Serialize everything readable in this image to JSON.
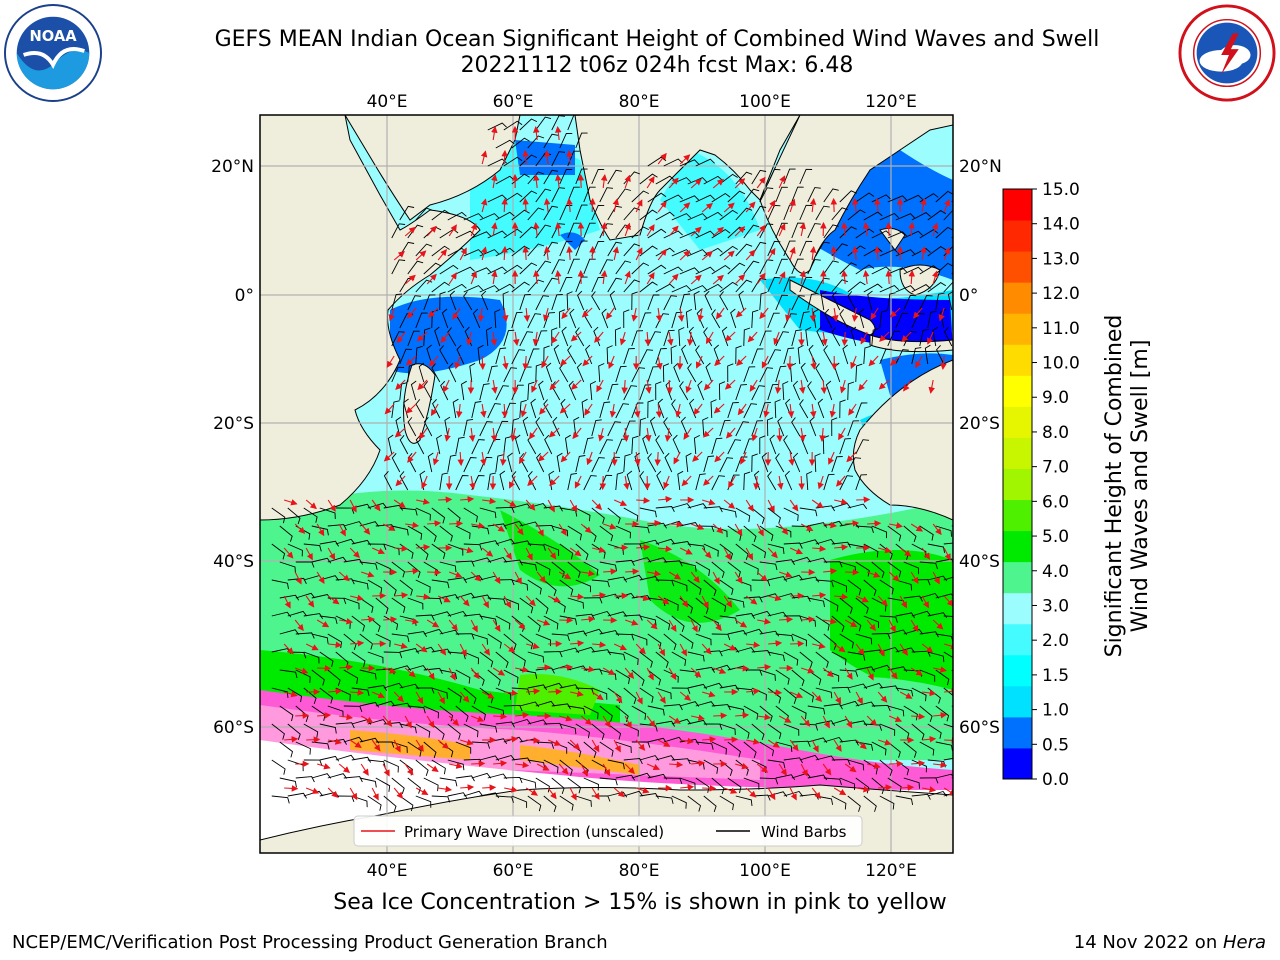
{
  "title": {
    "line1": "GEFS MEAN Indian Ocean Significant Height of Combined Wind Waves and Swell",
    "line2": "20221112 t06z 024h fcst   Max: 6.48"
  },
  "logos": {
    "left": {
      "icon": "noaa-logo",
      "text": "NOAA"
    },
    "right": {
      "icon": "nws-logo"
    }
  },
  "map": {
    "lon_labels": [
      "40°E",
      "60°E",
      "80°E",
      "100°E",
      "120°E"
    ],
    "lat_labels": [
      "20°N",
      "0°",
      "20°S",
      "40°S",
      "60°S"
    ],
    "colors": {
      "land": "#efeedd",
      "sea_ice": "#ff5ad6",
      "wave_arrows": "#e8141a",
      "wind_barbs": "#000000",
      "grid": "#b0b0b0"
    },
    "legend": {
      "primary_wave": "Primary Wave Direction (unscaled)",
      "wind_barbs": "Wind Barbs"
    }
  },
  "colorbar": {
    "title": "Significant Height of Combined Wind Waves and Swell [m]",
    "title_line1": "Significant Height of Combined",
    "title_line2": "Wind Waves and Swell [m]",
    "tick_labels": [
      "15.0",
      "14.0",
      "13.0",
      "12.0",
      "11.0",
      "10.0",
      "9.0",
      "8.0",
      "7.0",
      "6.0",
      "5.0",
      "4.0",
      "3.0",
      "2.0",
      "1.5",
      "1.0",
      "0.5",
      "0.0"
    ],
    "colors": [
      "#0000ff",
      "#0070ff",
      "#00e0ff",
      "#00ffff",
      "#44fbff",
      "#9bfdfd",
      "#4ef58f",
      "#00ea00",
      "#4ef000",
      "#a2f500",
      "#c8f500",
      "#e6f500",
      "#ffff00",
      "#ffdc00",
      "#ffb400",
      "#ff8c00",
      "#ff5000",
      "#ff2800",
      "#ff0000"
    ]
  },
  "caption": "Sea Ice Concentration > 15% is shown in pink to yellow",
  "footer": {
    "left": "NCEP/EMC/Verification Post Processing Product Generation Branch",
    "right_prefix": "14 Nov 2022 on ",
    "right_host": "Hera"
  }
}
